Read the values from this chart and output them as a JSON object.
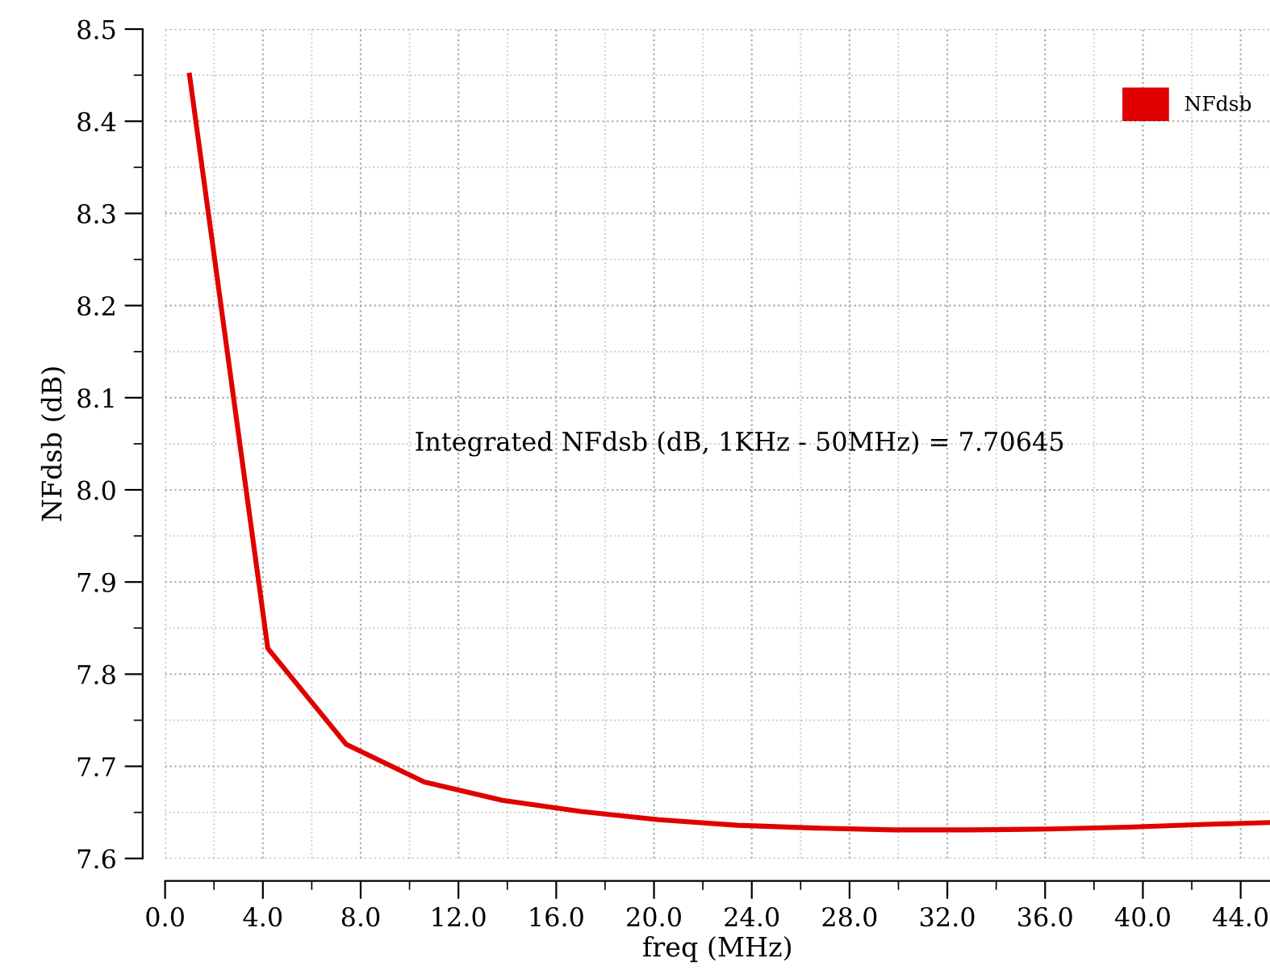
{
  "chart_data": {
    "type": "line",
    "xlabel": "freq (MHz)",
    "ylabel": "NFdsb (dB)",
    "x": [
      1.0,
      4.2,
      7.4,
      10.6,
      13.8,
      17.0,
      20.2,
      23.4,
      26.6,
      29.8,
      33.0,
      36.2,
      39.4,
      42.6,
      45.2
    ],
    "series": [
      {
        "name": "NFdsb",
        "color": "#e00000",
        "values": [
          8.45,
          7.828,
          7.724,
          7.683,
          7.663,
          7.651,
          7.642,
          7.636,
          7.633,
          7.631,
          7.631,
          7.632,
          7.634,
          7.637,
          7.639
        ]
      }
    ],
    "xlim": [
      0,
      45.2
    ],
    "ylim": [
      7.6,
      8.5
    ],
    "xticks": [
      {
        "value": 0,
        "label": "0.0"
      },
      {
        "value": 4,
        "label": "4.0"
      },
      {
        "value": 8,
        "label": "8.0"
      },
      {
        "value": 12,
        "label": "12.0"
      },
      {
        "value": 16,
        "label": "16.0"
      },
      {
        "value": 20,
        "label": "20.0"
      },
      {
        "value": 24,
        "label": "24.0"
      },
      {
        "value": 28,
        "label": "28.0"
      },
      {
        "value": 32,
        "label": "32.0"
      },
      {
        "value": 36,
        "label": "36.0"
      },
      {
        "value": 40,
        "label": "40.0"
      },
      {
        "value": 44,
        "label": "44.0"
      }
    ],
    "yticks": [
      7.6,
      7.7,
      7.8,
      7.9,
      {
        "value": 8.0,
        "label": "8.0"
      },
      8.1,
      8.2,
      8.3,
      8.4,
      8.5
    ],
    "annotations": [
      {
        "text": "Integrated NFdsb (dB, 1KHz - 50MHz) = 7.70645"
      }
    ],
    "grid": true,
    "legend": "top right",
    "marker": "none",
    "line_style": "solid"
  }
}
